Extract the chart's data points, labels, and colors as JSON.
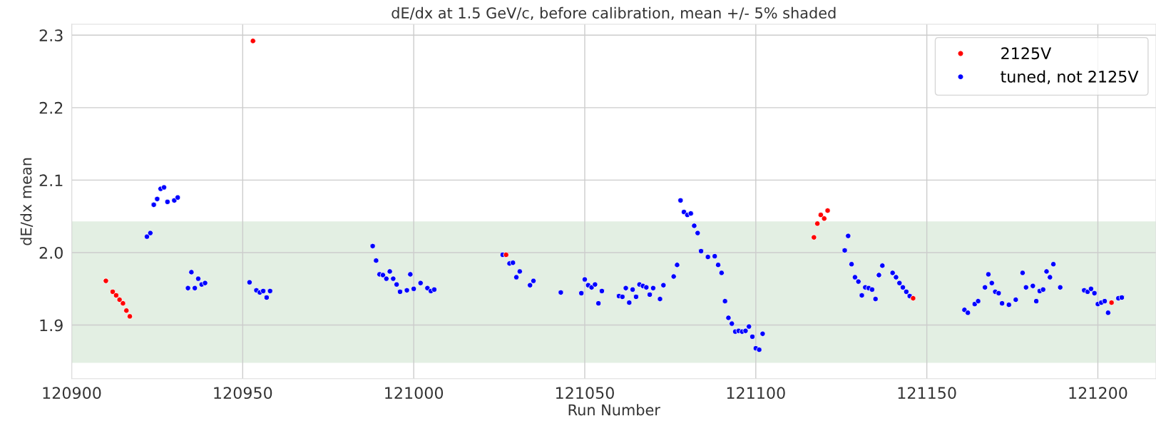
{
  "chart_data": {
    "type": "scatter",
    "title": "dE/dx at 1.5 GeV/c, before calibration, mean +/- 5% shaded",
    "xlabel": "Run Number",
    "ylabel": "dE/dx mean",
    "xlim": [
      120900,
      121217
    ],
    "xticks": [
      120900,
      120950,
      121000,
      121050,
      121100,
      121150,
      121200
    ],
    "ylim": [
      1.826,
      2.315
    ],
    "yticks": [
      1.9,
      {
        "value": 2.0,
        "label": "2.0"
      },
      2.1,
      2.2,
      2.3
    ],
    "grid": true,
    "legend": "top right",
    "marker": "circle",
    "bands": [
      {
        "axis": "y",
        "from": 1.848,
        "to": 2.043,
        "color": "#e3efe3"
      }
    ],
    "series": [
      {
        "name": "2125V",
        "color": "#ff0000",
        "x": [
          120910,
          120912,
          120913,
          120914,
          120915,
          120916,
          120917,
          120953,
          121027,
          121117,
          121118,
          121119,
          121120,
          121121,
          121146,
          121204
        ],
        "values": [
          1.961,
          1.946,
          1.941,
          1.935,
          1.93,
          1.92,
          1.912,
          2.292,
          1.997,
          2.021,
          2.04,
          2.052,
          2.047,
          2.058,
          1.937,
          1.931
        ]
      },
      {
        "name": "tuned, not 2125V",
        "color": "#0000ff",
        "x": [
          120922,
          120923,
          120924,
          120925,
          120926,
          120927,
          120928,
          120930,
          120931,
          120934,
          120935,
          120936,
          120937,
          120938,
          120939,
          120952,
          120954,
          120955,
          120956,
          120957,
          120958,
          120988,
          120989,
          120990,
          120991,
          120992,
          120993,
          120994,
          120995,
          120996,
          120998,
          120999,
          121000,
          121002,
          121004,
          121005,
          121006,
          121026,
          121028,
          121029,
          121030,
          121031,
          121034,
          121035,
          121043,
          121049,
          121050,
          121051,
          121052,
          121053,
          121054,
          121055,
          121060,
          121061,
          121062,
          121063,
          121064,
          121065,
          121066,
          121067,
          121068,
          121069,
          121070,
          121072,
          121073,
          121076,
          121077,
          121078,
          121079,
          121080,
          121081,
          121082,
          121083,
          121084,
          121086,
          121088,
          121089,
          121090,
          121091,
          121092,
          121093,
          121094,
          121095,
          121096,
          121097,
          121098,
          121099,
          121100,
          121101,
          121102,
          121126,
          121127,
          121128,
          121129,
          121130,
          121131,
          121132,
          121133,
          121134,
          121135,
          121136,
          121137,
          121140,
          121141,
          121142,
          121143,
          121144,
          121145,
          121161,
          121162,
          121164,
          121165,
          121167,
          121168,
          121169,
          121170,
          121171,
          121172,
          121174,
          121176,
          121178,
          121179,
          121181,
          121182,
          121183,
          121184,
          121185,
          121186,
          121187,
          121189,
          121196,
          121197,
          121198,
          121199,
          121200,
          121201,
          121202,
          121203,
          121206,
          121207
        ],
        "values": [
          2.022,
          2.027,
          2.066,
          2.074,
          2.088,
          2.09,
          2.07,
          2.072,
          2.076,
          1.951,
          1.973,
          1.951,
          1.964,
          1.956,
          1.958,
          1.959,
          1.948,
          1.945,
          1.947,
          1.938,
          1.947,
          2.009,
          1.989,
          1.97,
          1.969,
          1.964,
          1.974,
          1.964,
          1.956,
          1.946,
          1.948,
          1.97,
          1.95,
          1.958,
          1.951,
          1.947,
          1.949,
          1.997,
          1.985,
          1.986,
          1.966,
          1.974,
          1.955,
          1.961,
          1.945,
          1.944,
          1.963,
          1.955,
          1.952,
          1.956,
          1.93,
          1.947,
          1.94,
          1.939,
          1.951,
          1.931,
          1.949,
          1.939,
          1.956,
          1.954,
          1.952,
          1.942,
          1.951,
          1.936,
          1.955,
          1.967,
          1.983,
          2.072,
          2.056,
          2.052,
          2.054,
          2.037,
          2.027,
          2.002,
          1.994,
          1.995,
          1.983,
          1.972,
          1.933,
          1.91,
          1.902,
          1.891,
          1.892,
          1.891,
          1.892,
          1.898,
          1.884,
          1.868,
          1.866,
          1.888,
          2.003,
          2.023,
          1.984,
          1.966,
          1.96,
          1.941,
          1.952,
          1.951,
          1.949,
          1.936,
          1.969,
          1.982,
          1.972,
          1.966,
          1.958,
          1.952,
          1.946,
          1.94,
          1.921,
          1.917,
          1.929,
          1.933,
          1.952,
          1.97,
          1.958,
          1.946,
          1.944,
          1.93,
          1.928,
          1.935,
          1.972,
          1.952,
          1.954,
          1.933,
          1.947,
          1.949,
          1.974,
          1.966,
          1.984,
          1.952,
          1.948,
          1.946,
          1.95,
          1.944,
          1.929,
          1.931,
          1.933,
          1.917,
          1.937,
          1.938
        ]
      }
    ]
  }
}
